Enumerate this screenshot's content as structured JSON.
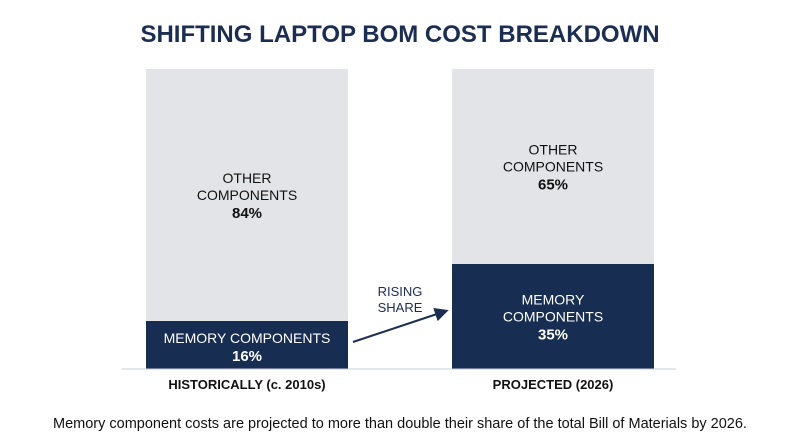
{
  "chart_data": {
    "type": "bar",
    "stacked": true,
    "title": "SHIFTING LAPTOP BOM COST BREAKDOWN",
    "categories": [
      "HISTORICALLY (c. 2010s)",
      "PROJECTED (2026)"
    ],
    "series": [
      {
        "name": "MEMORY COMPONENTS",
        "values": [
          16,
          35
        ]
      },
      {
        "name": "OTHER COMPONENTS",
        "values": [
          84,
          65
        ]
      }
    ],
    "value_labels": {
      "memory": [
        "16%",
        "35%"
      ],
      "other": [
        "84%",
        "65%"
      ]
    },
    "segment_text": {
      "other_lines": [
        "OTHER",
        "COMPONENTS"
      ],
      "memory_single_line": "MEMORY COMPONENTS",
      "memory_lines": [
        "MEMORY",
        "COMPONENTS"
      ]
    },
    "ylim": [
      0,
      100
    ],
    "grid": false,
    "annotation": {
      "lines": [
        "RISING",
        "SHARE"
      ]
    },
    "caption": "Memory component costs are projected to more than double their share of the total Bill of Materials by 2026.",
    "colors": {
      "memory": "#182d52",
      "other": "#e3e4e8",
      "title": "#1b2e52"
    }
  }
}
